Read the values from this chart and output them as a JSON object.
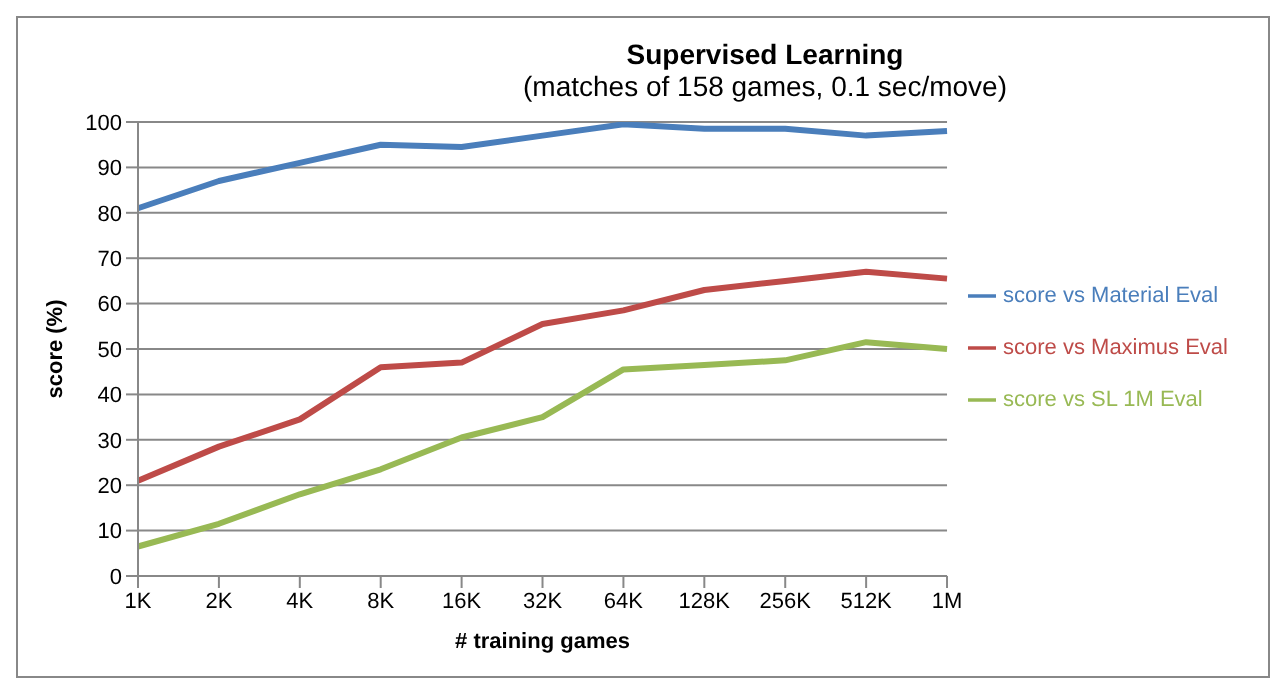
{
  "chart_data": {
    "type": "line",
    "title": "Supervised Learning",
    "subtitle": "(matches of 158 games, 0.1 sec/move)",
    "xlabel": "# training games",
    "ylabel": "score (%)",
    "categories": [
      "1K",
      "2K",
      "4K",
      "8K",
      "16K",
      "32K",
      "64K",
      "128K",
      "256K",
      "512K",
      "1M"
    ],
    "series": [
      {
        "name": "score vs Material Eval",
        "color": "#4a7ebb",
        "values": [
          81,
          87,
          91,
          95,
          94.5,
          97,
          99.5,
          98.5,
          98.5,
          97,
          98
        ]
      },
      {
        "name": "score vs Maximus  Eval",
        "color": "#be4b48",
        "values": [
          21,
          28.5,
          34.5,
          46,
          47,
          55.5,
          58.5,
          63,
          65,
          67,
          65.5
        ]
      },
      {
        "name": "score vs SL 1M Eval",
        "color": "#98b954",
        "values": [
          6.5,
          11.5,
          18,
          23.5,
          30.5,
          35,
          45.5,
          46.5,
          47.5,
          51.5,
          50
        ]
      }
    ],
    "ylim": [
      0,
      100
    ],
    "yticks": [
      0,
      10,
      20,
      30,
      40,
      50,
      60,
      70,
      80,
      90,
      100
    ],
    "grid": "y",
    "legend": "right",
    "marker": "none",
    "line_style": "solid"
  }
}
